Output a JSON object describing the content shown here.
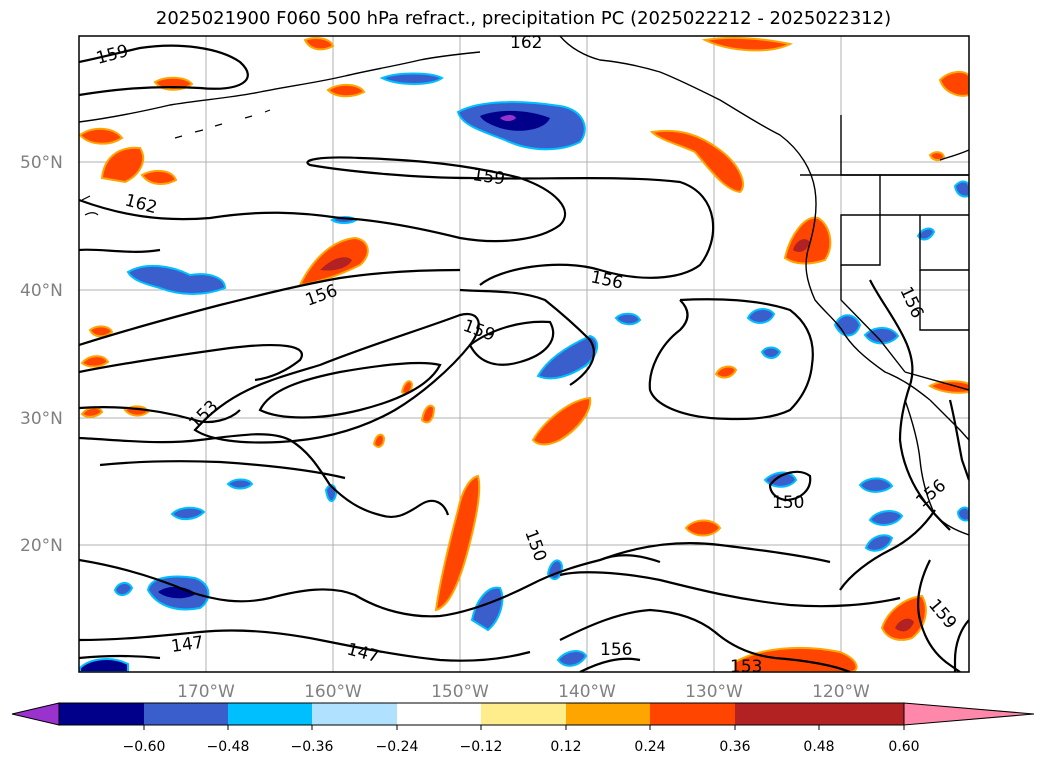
{
  "title": "2025021900 F060 500 hPa refract., precipitation PC (2025022212 - 2025022312)",
  "map": {
    "lat_ticks": [
      "50°N",
      "40°N",
      "30°N",
      "20°N"
    ],
    "lon_ticks": [
      "170°W",
      "160°W",
      "150°W",
      "140°W",
      "130°W",
      "120°W"
    ],
    "contour_labels": [
      "159",
      "162",
      "162",
      "159",
      "156",
      "156",
      "159",
      "156",
      "153",
      "150",
      "150",
      "147",
      "147",
      "156",
      "153",
      "159",
      "156"
    ]
  },
  "colorbar": {
    "colors": [
      "#9a32cd",
      "#00008b",
      "#3a5fcd",
      "#00bfff",
      "#b0e2ff",
      "#ffffff",
      "#ffec8b",
      "#ffa500",
      "#ff4500",
      "#b22222",
      "#ff88aa"
    ],
    "tick_labels": [
      "−0.60",
      "−0.48",
      "−0.36",
      "−0.24",
      "−0.12",
      "0.12",
      "0.24",
      "0.36",
      "0.48",
      "0.60"
    ]
  }
}
